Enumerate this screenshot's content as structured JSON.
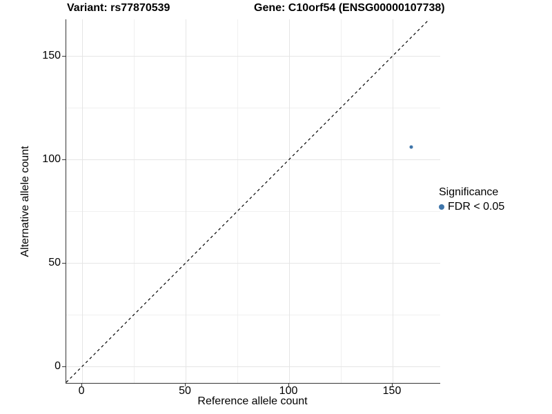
{
  "figure": {
    "title_left": "Variant: rs77870539",
    "title_right": "Gene: C10orf54 (ENSG00000107738)"
  },
  "chart_data": {
    "type": "scatter",
    "title": "Variant: rs77870539   Gene: C10orf54 (ENSG00000107738)",
    "xlabel": "Reference allele count",
    "ylabel": "Alternative allele count",
    "xlim": [
      -7.7,
      173
    ],
    "ylim": [
      -8,
      167.7
    ],
    "x_major_ticks": [
      0,
      50,
      100,
      150
    ],
    "y_major_ticks": [
      0,
      50,
      100,
      150
    ],
    "x_minor_ticks": [
      25,
      75,
      125
    ],
    "y_minor_ticks": [
      25,
      75,
      125
    ],
    "grid": true,
    "points": [
      {
        "x": 159,
        "y": 106,
        "series": "FDR < 0.05"
      }
    ],
    "identity_line": {
      "style": "dashed",
      "equation": "y = x",
      "dash": [
        4,
        4
      ]
    },
    "legend": {
      "title": "Significance",
      "position": "right",
      "entries": [
        {
          "label": "FDR < 0.05",
          "color": "#3f75aa"
        }
      ]
    },
    "colors": {
      "point": "#3f75aa",
      "axis_line": "#333333",
      "grid_major": "#e5e5e5",
      "grid_minor": "#f0f0f0",
      "dashed_line": "#000000",
      "text": "#000000",
      "background": "#ffffff"
    }
  }
}
